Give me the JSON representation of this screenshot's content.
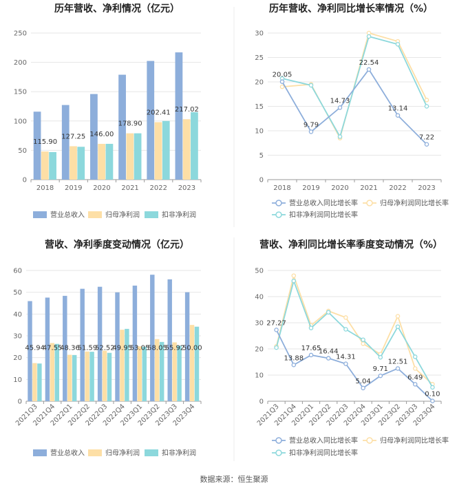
{
  "source": "数据来源：恒生聚源",
  "colors": {
    "revenue": "#8DAEDB",
    "net_profit": "#FDDFA6",
    "deducted_profit": "#8CD8DC",
    "revenue_line": "#8DAEDB",
    "net_profit_line": "#FDDFA6",
    "deducted_line": "#8CD8DC",
    "grid": "#E6E6E6",
    "axis": "#999999"
  },
  "chart_data": [
    {
      "id": "annual-bar",
      "type": "bar",
      "title": "历年营收、净利情况（亿元）",
      "categories": [
        "2018",
        "2019",
        "2020",
        "2021",
        "2022",
        "2023"
      ],
      "ylim": [
        0,
        250
      ],
      "yticks": [
        0,
        50,
        100,
        150,
        200,
        250
      ],
      "series": [
        {
          "name": "营业总收入",
          "values": [
            115.9,
            127.25,
            146.0,
            178.9,
            202.41,
            217.02
          ],
          "labels": [
            "115.90",
            "127.25",
            "146.00",
            "178.90",
            "202.41",
            "217.02"
          ]
        },
        {
          "name": "归母净利润",
          "values": [
            48,
            57,
            61,
            79,
            98,
            103
          ]
        },
        {
          "name": "扣非净利润",
          "values": [
            47,
            56,
            61,
            79,
            100,
            115
          ]
        }
      ]
    },
    {
      "id": "annual-line",
      "type": "line",
      "title": "历年营收、净利同比增长率情况（%）",
      "categories": [
        "2018",
        "2019",
        "2020",
        "2021",
        "2022",
        "2023"
      ],
      "ylim": [
        0,
        30
      ],
      "yticks": [
        0,
        5,
        10,
        15,
        20,
        25,
        30
      ],
      "series": [
        {
          "name": "营业总收入同比增长率",
          "values": [
            20.05,
            9.79,
            14.73,
            22.54,
            13.14,
            7.22
          ],
          "labels": [
            "20.05",
            "9.79",
            "14.73",
            "22.54",
            "13.14",
            "7.22"
          ]
        },
        {
          "name": "归母净利润同比增长率",
          "values": [
            19.0,
            19.5,
            8.5,
            30.0,
            28.3,
            16.3
          ]
        },
        {
          "name": "扣非净利润同比增长率",
          "values": [
            20.7,
            19.3,
            8.8,
            29.3,
            27.7,
            15.0
          ]
        }
      ]
    },
    {
      "id": "quarter-bar",
      "type": "bar",
      "title": "营收、净利季度变动情况（亿元）",
      "categories": [
        "2021Q3",
        "2021Q4",
        "2022Q1",
        "2022Q2",
        "2022Q3",
        "2022Q4",
        "2023Q1",
        "2023Q2",
        "2023Q3",
        "2023Q4"
      ],
      "ylim": [
        0,
        60
      ],
      "yticks": [
        0,
        10,
        20,
        30,
        40,
        50,
        60
      ],
      "series": [
        {
          "name": "营业总收入",
          "values": [
            45.94,
            47.55,
            48.36,
            51.59,
            52.52,
            49.95,
            53.05,
            58.05,
            55.92,
            50.0
          ],
          "labels": [
            "45.94",
            "47.55",
            "48.36",
            "51.59",
            "52.52",
            "49.95",
            "53.05",
            "58.05",
            "55.92",
            "50.00"
          ]
        },
        {
          "name": "归母净利润",
          "values": [
            17.5,
            26.7,
            21.3,
            22.8,
            23.2,
            32.8,
            25.2,
            28.5,
            27.0,
            35.0
          ]
        },
        {
          "name": "扣非净利润",
          "values": [
            17.3,
            26.3,
            21.2,
            22.7,
            22.2,
            33.2,
            25.0,
            27.2,
            25.5,
            34.2
          ]
        }
      ]
    },
    {
      "id": "quarter-line",
      "type": "line",
      "title": "营收、净利同比增长率季度变动情况（%）",
      "categories": [
        "2021Q3",
        "2021Q4",
        "2022Q1",
        "2022Q2",
        "2022Q3",
        "2022Q4",
        "2023Q1",
        "2023Q2",
        "2023Q3",
        "2023Q4"
      ],
      "ylim": [
        0,
        50
      ],
      "yticks": [
        0,
        10,
        20,
        30,
        40,
        50
      ],
      "series": [
        {
          "name": "营业总收入同比增长率",
          "values": [
            27.27,
            13.88,
            17.65,
            16.44,
            14.31,
            5.04,
            9.71,
            12.51,
            6.49,
            0.1
          ],
          "labels": [
            "27.27",
            "13.88",
            "17.65",
            "16.44",
            "14.31",
            "5.04",
            "9.71",
            "12.51",
            "6.49",
            "0.10"
          ]
        },
        {
          "name": "归母净利润同比增长率",
          "values": [
            21.0,
            48.0,
            29.0,
            34.5,
            32.0,
            22.0,
            18.0,
            32.5,
            12.5,
            6.5
          ]
        },
        {
          "name": "扣非净利润同比增长率",
          "values": [
            20.5,
            46.0,
            28.0,
            34.0,
            27.5,
            23.5,
            16.8,
            28.5,
            17.0,
            5.3
          ]
        }
      ]
    }
  ]
}
